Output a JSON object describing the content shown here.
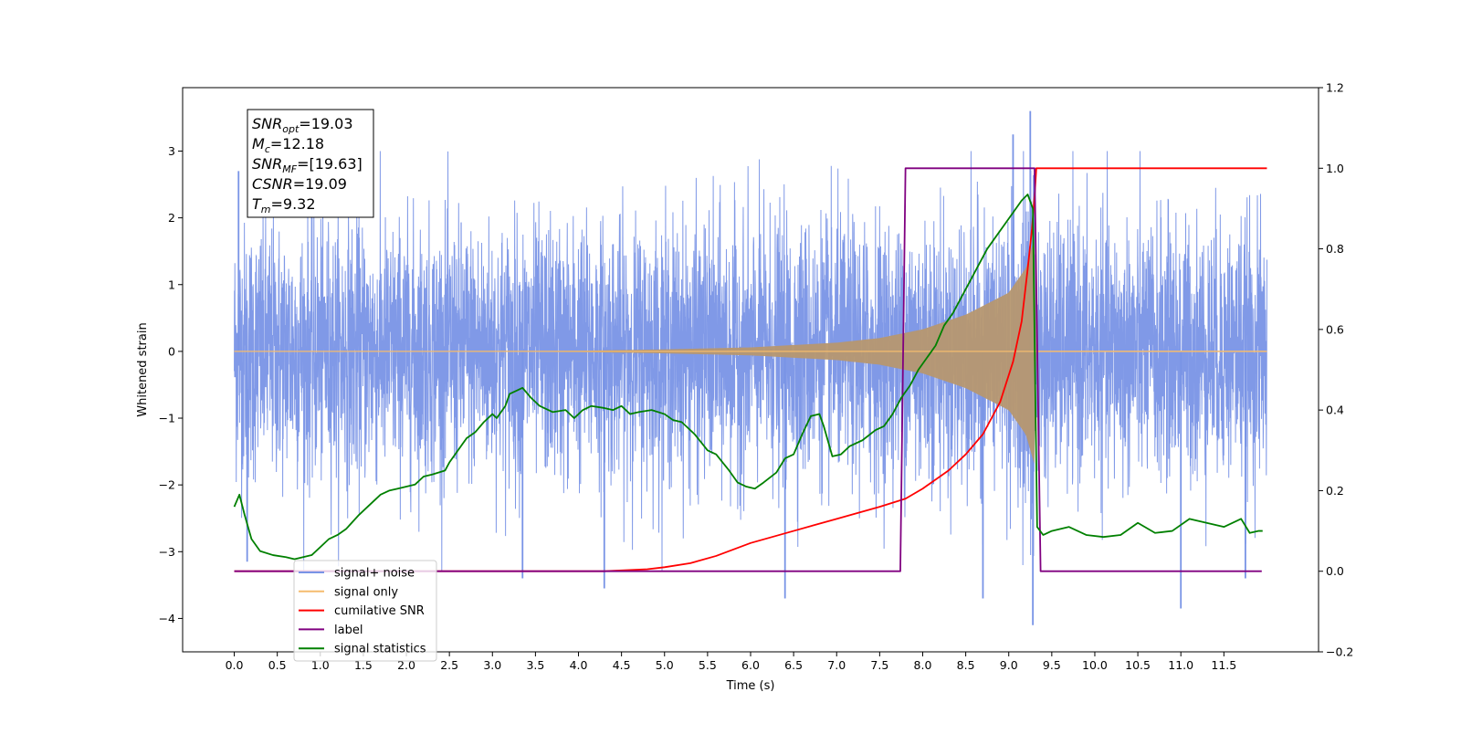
{
  "chart_data": {
    "type": "line",
    "title": "",
    "xlabel": "Time (s)",
    "ylabel": "Whitened strain",
    "xlim": [
      -0.6,
      12.6
    ],
    "ylim": [
      -4.5,
      3.95
    ],
    "y2lim": [
      -0.2,
      1.2
    ],
    "x_ticks": [
      "0.0",
      "0.5",
      "1.0",
      "1.5",
      "2.0",
      "2.5",
      "3.0",
      "3.5",
      "4.0",
      "4.5",
      "5.0",
      "5.5",
      "6.0",
      "6.5",
      "7.0",
      "7.5",
      "8.0",
      "8.5",
      "9.0",
      "9.5",
      "10.0",
      "10.5",
      "11.0",
      "11.5"
    ],
    "y_ticks": [
      "3",
      "2",
      "1",
      "0",
      "−1",
      "−2",
      "−3",
      "−4"
    ],
    "y2_ticks": [
      "1.2",
      "1.0",
      "0.8",
      "0.6",
      "0.4",
      "0.2",
      "0.0",
      "−0.2"
    ],
    "grid": false,
    "legend_position": "lower-left",
    "annotation": {
      "lines": [
        {
          "base": "SNR",
          "sub": "opt",
          "value": "=19.03"
        },
        {
          "base": "M",
          "sub": "c",
          "value": "=12.18"
        },
        {
          "base": "SNR",
          "sub": "MF",
          "value": "=[19.63]"
        },
        {
          "base": "CSNR",
          "sub": "",
          "value": "=19.09"
        },
        {
          "base": "T",
          "sub": "m",
          "value": "=9.32"
        }
      ]
    },
    "series": [
      {
        "name": "signal+ noise",
        "color": "#7994e6",
        "axis": "left",
        "description_values": {
          "t_start": 0.0,
          "t_end": 12.0,
          "noise_sigma": 0.95,
          "extremes": [
            [
              0.05,
              2.7
            ],
            [
              0.15,
              -3.15
            ],
            [
              3.35,
              -3.4
            ],
            [
              4.3,
              -3.55
            ],
            [
              6.4,
              -3.7
            ],
            [
              8.7,
              -3.7
            ],
            [
              9.28,
              -4.1
            ],
            [
              9.25,
              3.6
            ],
            [
              9.05,
              3.25
            ],
            [
              11.0,
              -3.85
            ],
            [
              11.75,
              -3.4
            ]
          ]
        }
      },
      {
        "name": "signal only",
        "color": "#f5bc6e",
        "axis": "left",
        "envelope": [
          [
            0.0,
            0.0
          ],
          [
            4.0,
            0.01
          ],
          [
            5.0,
            0.03
          ],
          [
            6.0,
            0.06
          ],
          [
            7.0,
            0.13
          ],
          [
            7.5,
            0.2
          ],
          [
            8.0,
            0.33
          ],
          [
            8.5,
            0.55
          ],
          [
            9.0,
            0.88
          ],
          [
            9.2,
            1.25
          ],
          [
            9.3,
            1.7
          ],
          [
            9.32,
            0.0
          ],
          [
            12.0,
            0.0
          ]
        ]
      },
      {
        "name": "cumilative SNR",
        "color": "#ff0000",
        "axis": "right",
        "points": [
          [
            0.0,
            0.0
          ],
          [
            4.3,
            0.0
          ],
          [
            4.8,
            0.005
          ],
          [
            5.0,
            0.01
          ],
          [
            5.3,
            0.02
          ],
          [
            5.6,
            0.038
          ],
          [
            6.0,
            0.07
          ],
          [
            6.5,
            0.1
          ],
          [
            7.0,
            0.13
          ],
          [
            7.5,
            0.16
          ],
          [
            7.8,
            0.18
          ],
          [
            8.0,
            0.205
          ],
          [
            8.3,
            0.25
          ],
          [
            8.5,
            0.29
          ],
          [
            8.7,
            0.34
          ],
          [
            8.9,
            0.42
          ],
          [
            9.05,
            0.52
          ],
          [
            9.15,
            0.62
          ],
          [
            9.22,
            0.75
          ],
          [
            9.27,
            0.85
          ],
          [
            9.3,
            0.93
          ],
          [
            9.32,
            1.0
          ],
          [
            12.0,
            1.0
          ]
        ]
      },
      {
        "name": "label",
        "color": "#800080",
        "axis": "right",
        "points": [
          [
            0.0,
            0.0
          ],
          [
            7.74,
            0.0
          ],
          [
            7.8,
            1.0
          ],
          [
            9.3,
            1.0
          ],
          [
            9.37,
            0.0
          ],
          [
            11.94,
            0.0
          ]
        ]
      },
      {
        "name": "signal statistics",
        "color": "#008000",
        "axis": "right",
        "points": [
          [
            0.0,
            0.16
          ],
          [
            0.06,
            0.19
          ],
          [
            0.12,
            0.14
          ],
          [
            0.2,
            0.08
          ],
          [
            0.3,
            0.05
          ],
          [
            0.45,
            0.04
          ],
          [
            0.6,
            0.035
          ],
          [
            0.7,
            0.03
          ],
          [
            0.8,
            0.035
          ],
          [
            0.9,
            0.04
          ],
          [
            1.0,
            0.06
          ],
          [
            1.1,
            0.08
          ],
          [
            1.2,
            0.09
          ],
          [
            1.3,
            0.105
          ],
          [
            1.45,
            0.14
          ],
          [
            1.55,
            0.16
          ],
          [
            1.7,
            0.19
          ],
          [
            1.8,
            0.2
          ],
          [
            1.9,
            0.205
          ],
          [
            2.0,
            0.21
          ],
          [
            2.1,
            0.215
          ],
          [
            2.2,
            0.235
          ],
          [
            2.3,
            0.24
          ],
          [
            2.45,
            0.25
          ],
          [
            2.5,
            0.27
          ],
          [
            2.6,
            0.3
          ],
          [
            2.7,
            0.33
          ],
          [
            2.8,
            0.345
          ],
          [
            2.9,
            0.37
          ],
          [
            3.0,
            0.39
          ],
          [
            3.05,
            0.38
          ],
          [
            3.15,
            0.41
          ],
          [
            3.2,
            0.44
          ],
          [
            3.3,
            0.45
          ],
          [
            3.35,
            0.455
          ],
          [
            3.45,
            0.43
          ],
          [
            3.55,
            0.41
          ],
          [
            3.7,
            0.395
          ],
          [
            3.85,
            0.4
          ],
          [
            3.95,
            0.38
          ],
          [
            4.05,
            0.4
          ],
          [
            4.15,
            0.41
          ],
          [
            4.3,
            0.405
          ],
          [
            4.4,
            0.4
          ],
          [
            4.5,
            0.41
          ],
          [
            4.6,
            0.39
          ],
          [
            4.7,
            0.395
          ],
          [
            4.85,
            0.4
          ],
          [
            5.0,
            0.39
          ],
          [
            5.1,
            0.375
          ],
          [
            5.2,
            0.37
          ],
          [
            5.35,
            0.34
          ],
          [
            5.5,
            0.3
          ],
          [
            5.6,
            0.29
          ],
          [
            5.75,
            0.25
          ],
          [
            5.85,
            0.22
          ],
          [
            5.95,
            0.21
          ],
          [
            6.05,
            0.205
          ],
          [
            6.15,
            0.22
          ],
          [
            6.3,
            0.245
          ],
          [
            6.4,
            0.28
          ],
          [
            6.5,
            0.29
          ],
          [
            6.6,
            0.34
          ],
          [
            6.7,
            0.385
          ],
          [
            6.8,
            0.39
          ],
          [
            6.85,
            0.36
          ],
          [
            6.95,
            0.285
          ],
          [
            7.05,
            0.29
          ],
          [
            7.15,
            0.31
          ],
          [
            7.3,
            0.325
          ],
          [
            7.45,
            0.35
          ],
          [
            7.55,
            0.36
          ],
          [
            7.65,
            0.39
          ],
          [
            7.75,
            0.43
          ],
          [
            7.85,
            0.46
          ],
          [
            7.95,
            0.5
          ],
          [
            8.05,
            0.53
          ],
          [
            8.15,
            0.56
          ],
          [
            8.25,
            0.61
          ],
          [
            8.35,
            0.64
          ],
          [
            8.45,
            0.68
          ],
          [
            8.55,
            0.72
          ],
          [
            8.65,
            0.76
          ],
          [
            8.75,
            0.8
          ],
          [
            8.85,
            0.83
          ],
          [
            8.95,
            0.86
          ],
          [
            9.05,
            0.89
          ],
          [
            9.15,
            0.92
          ],
          [
            9.22,
            0.935
          ],
          [
            9.28,
            0.9
          ],
          [
            9.33,
            0.11
          ],
          [
            9.4,
            0.09
          ],
          [
            9.5,
            0.1
          ],
          [
            9.7,
            0.11
          ],
          [
            9.9,
            0.09
          ],
          [
            10.1,
            0.085
          ],
          [
            10.3,
            0.09
          ],
          [
            10.5,
            0.12
          ],
          [
            10.7,
            0.095
          ],
          [
            10.9,
            0.1
          ],
          [
            11.1,
            0.13
          ],
          [
            11.3,
            0.12
          ],
          [
            11.5,
            0.11
          ],
          [
            11.7,
            0.13
          ],
          [
            11.8,
            0.095
          ],
          [
            11.9,
            0.1
          ],
          [
            11.95,
            0.1
          ]
        ]
      }
    ]
  }
}
